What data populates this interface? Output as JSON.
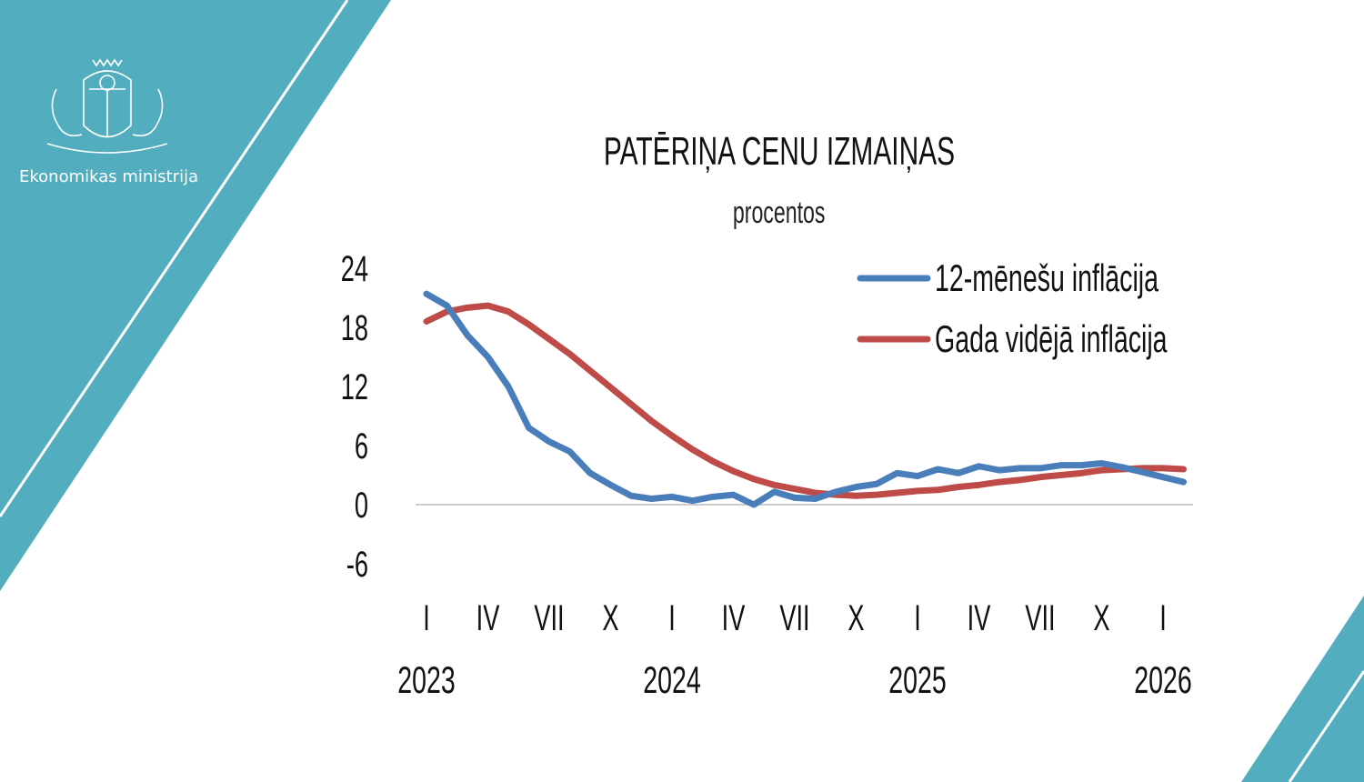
{
  "brand": {
    "ministry": "Ekonomikas ministrija",
    "logo": "Latvian coat of arms",
    "accent": "#52adbe"
  },
  "chart_data": {
    "type": "line",
    "title": "PATĒRIŅA CENU IZMAIŅAS",
    "subtitle": "procentos",
    "ylim": [
      -6,
      24
    ],
    "yticks": [
      24,
      18,
      12,
      6,
      0,
      -6
    ],
    "xtick_labels": [
      "I",
      "IV",
      "VII",
      "X",
      "I",
      "IV",
      "VII",
      "X",
      "I",
      "IV",
      "VII",
      "X",
      "I"
    ],
    "year_labels": [
      "2023",
      "2024",
      "2025",
      "2026"
    ],
    "x_start": "2023-01",
    "x_end": "2026-02",
    "frequency": "monthly",
    "legend_position": "top-right",
    "grid": false,
    "series": [
      {
        "name": "12-mēnešu inflācija",
        "color": "#4a7ebb",
        "values": [
          21.4,
          20.2,
          17.2,
          15.0,
          12.0,
          7.8,
          6.4,
          5.4,
          3.2,
          2.0,
          0.9,
          0.6,
          0.8,
          0.4,
          0.8,
          1.0,
          0.0,
          1.3,
          0.7,
          0.6,
          1.3,
          1.8,
          2.1,
          3.2,
          2.9,
          3.6,
          3.2,
          3.9,
          3.5,
          3.7,
          3.7,
          4.0,
          4.0,
          4.2,
          3.8,
          3.3,
          2.8,
          2.3
        ]
      },
      {
        "name": "Gada vidējā inflācija",
        "color": "#be4b48",
        "values": [
          18.6,
          19.6,
          20.0,
          20.2,
          19.6,
          18.3,
          16.8,
          15.3,
          13.6,
          11.9,
          10.2,
          8.5,
          7.0,
          5.6,
          4.4,
          3.4,
          2.6,
          2.0,
          1.6,
          1.2,
          1.0,
          0.9,
          1.0,
          1.2,
          1.4,
          1.5,
          1.8,
          2.0,
          2.3,
          2.5,
          2.8,
          3.0,
          3.2,
          3.5,
          3.6,
          3.7,
          3.7,
          3.6
        ]
      }
    ]
  }
}
